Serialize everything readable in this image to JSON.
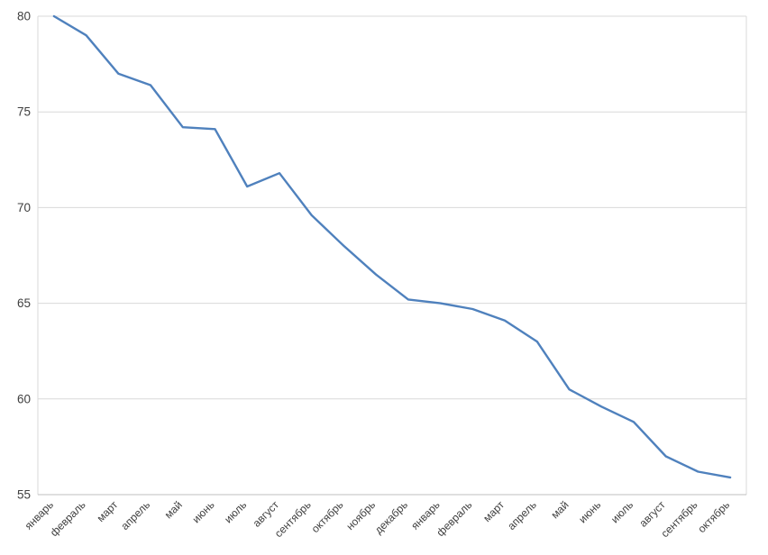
{
  "chart_data": {
    "type": "line",
    "title": "",
    "xlabel": "",
    "ylabel": "",
    "categories": [
      "январь",
      "февраль",
      "март",
      "апрель",
      "май",
      "июнь",
      "июль",
      "август",
      "сентябрь",
      "октябрь",
      "ноябрь",
      "декабрь",
      "январь",
      "февраль",
      "март",
      "апрель",
      "май",
      "июнь",
      "июль",
      "август",
      "сентябрь",
      "октябрь"
    ],
    "values": [
      80,
      79,
      77,
      76.4,
      74.2,
      74.1,
      71.1,
      71.8,
      69.6,
      68,
      66.5,
      65.2,
      65,
      64.7,
      64.1,
      63,
      60.5,
      59.6,
      58.8,
      57,
      56.2,
      55.9
    ],
    "ylim": [
      55,
      80
    ],
    "yticks": [
      55,
      60,
      65,
      70,
      75,
      80
    ],
    "grid": "horizontal",
    "legend": "none",
    "line_color": "#4f81bd",
    "gridline_color": "#d9d9d9",
    "axis_line_color": "#bfbfbf",
    "tick_label_color": "#3f3f3f",
    "background_color": "#ffffff"
  }
}
